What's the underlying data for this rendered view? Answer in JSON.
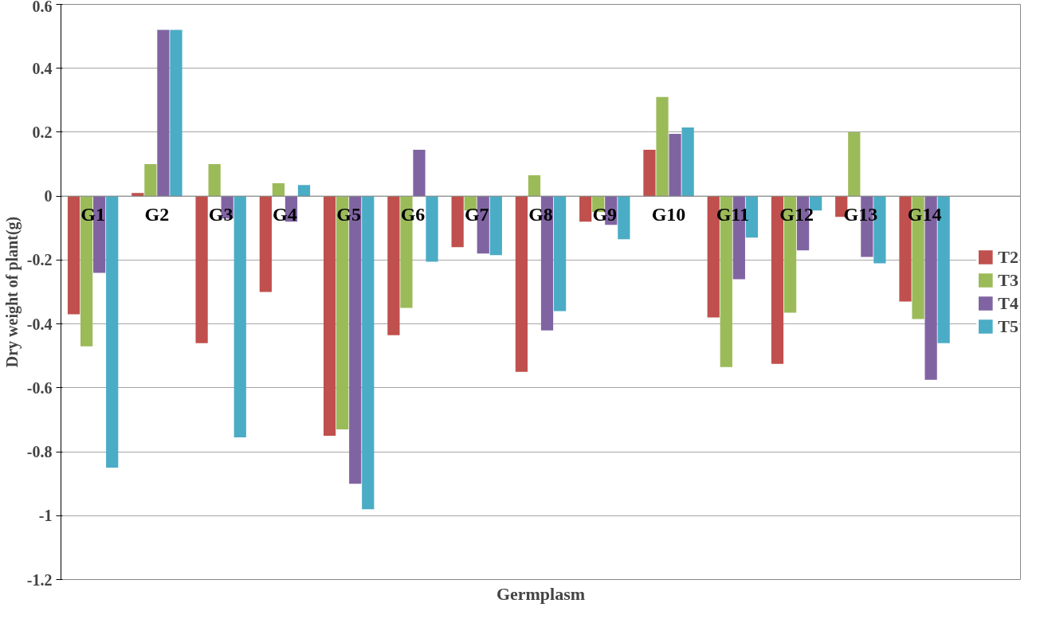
{
  "chart_data": {
    "type": "bar",
    "xlabel": "Germplasm",
    "ylabel": "Dry weight of plant(g)",
    "categories": [
      "G1",
      "G2",
      "G3",
      "G4",
      "G5",
      "G6",
      "G7",
      "G8",
      "G9",
      "G10",
      "G11",
      "G12",
      "G13",
      "G14"
    ],
    "series": [
      {
        "name": "T2",
        "color": "#c0504d",
        "values": [
          -0.37,
          0.01,
          -0.46,
          -0.3,
          -0.75,
          -0.435,
          -0.16,
          -0.55,
          -0.08,
          0.145,
          -0.38,
          -0.525,
          -0.065,
          -0.33
        ]
      },
      {
        "name": "T3",
        "color": "#9bbb59",
        "values": [
          -0.47,
          0.1,
          0.1,
          0.04,
          -0.73,
          -0.35,
          -0.045,
          0.065,
          -0.05,
          0.31,
          -0.535,
          -0.365,
          0.2,
          -0.385
        ]
      },
      {
        "name": "T4",
        "color": "#8064a2",
        "values": [
          -0.24,
          0.52,
          -0.07,
          -0.08,
          -0.9,
          0.145,
          -0.18,
          -0.42,
          -0.09,
          0.195,
          -0.26,
          -0.17,
          -0.19,
          -0.575
        ]
      },
      {
        "name": "T5",
        "color": "#4bacc6",
        "values": [
          -0.85,
          0.52,
          -0.755,
          0.035,
          -0.98,
          -0.205,
          -0.185,
          -0.36,
          -0.135,
          0.215,
          -0.13,
          -0.045,
          -0.21,
          -0.46
        ]
      }
    ],
    "ylim": [
      -1.2,
      0.6
    ],
    "yticks": [
      -1.2,
      -1,
      -0.8,
      -0.6,
      -0.4,
      -0.2,
      0,
      0.2,
      0.4,
      0.6
    ],
    "grid": "y",
    "legend": "right"
  }
}
